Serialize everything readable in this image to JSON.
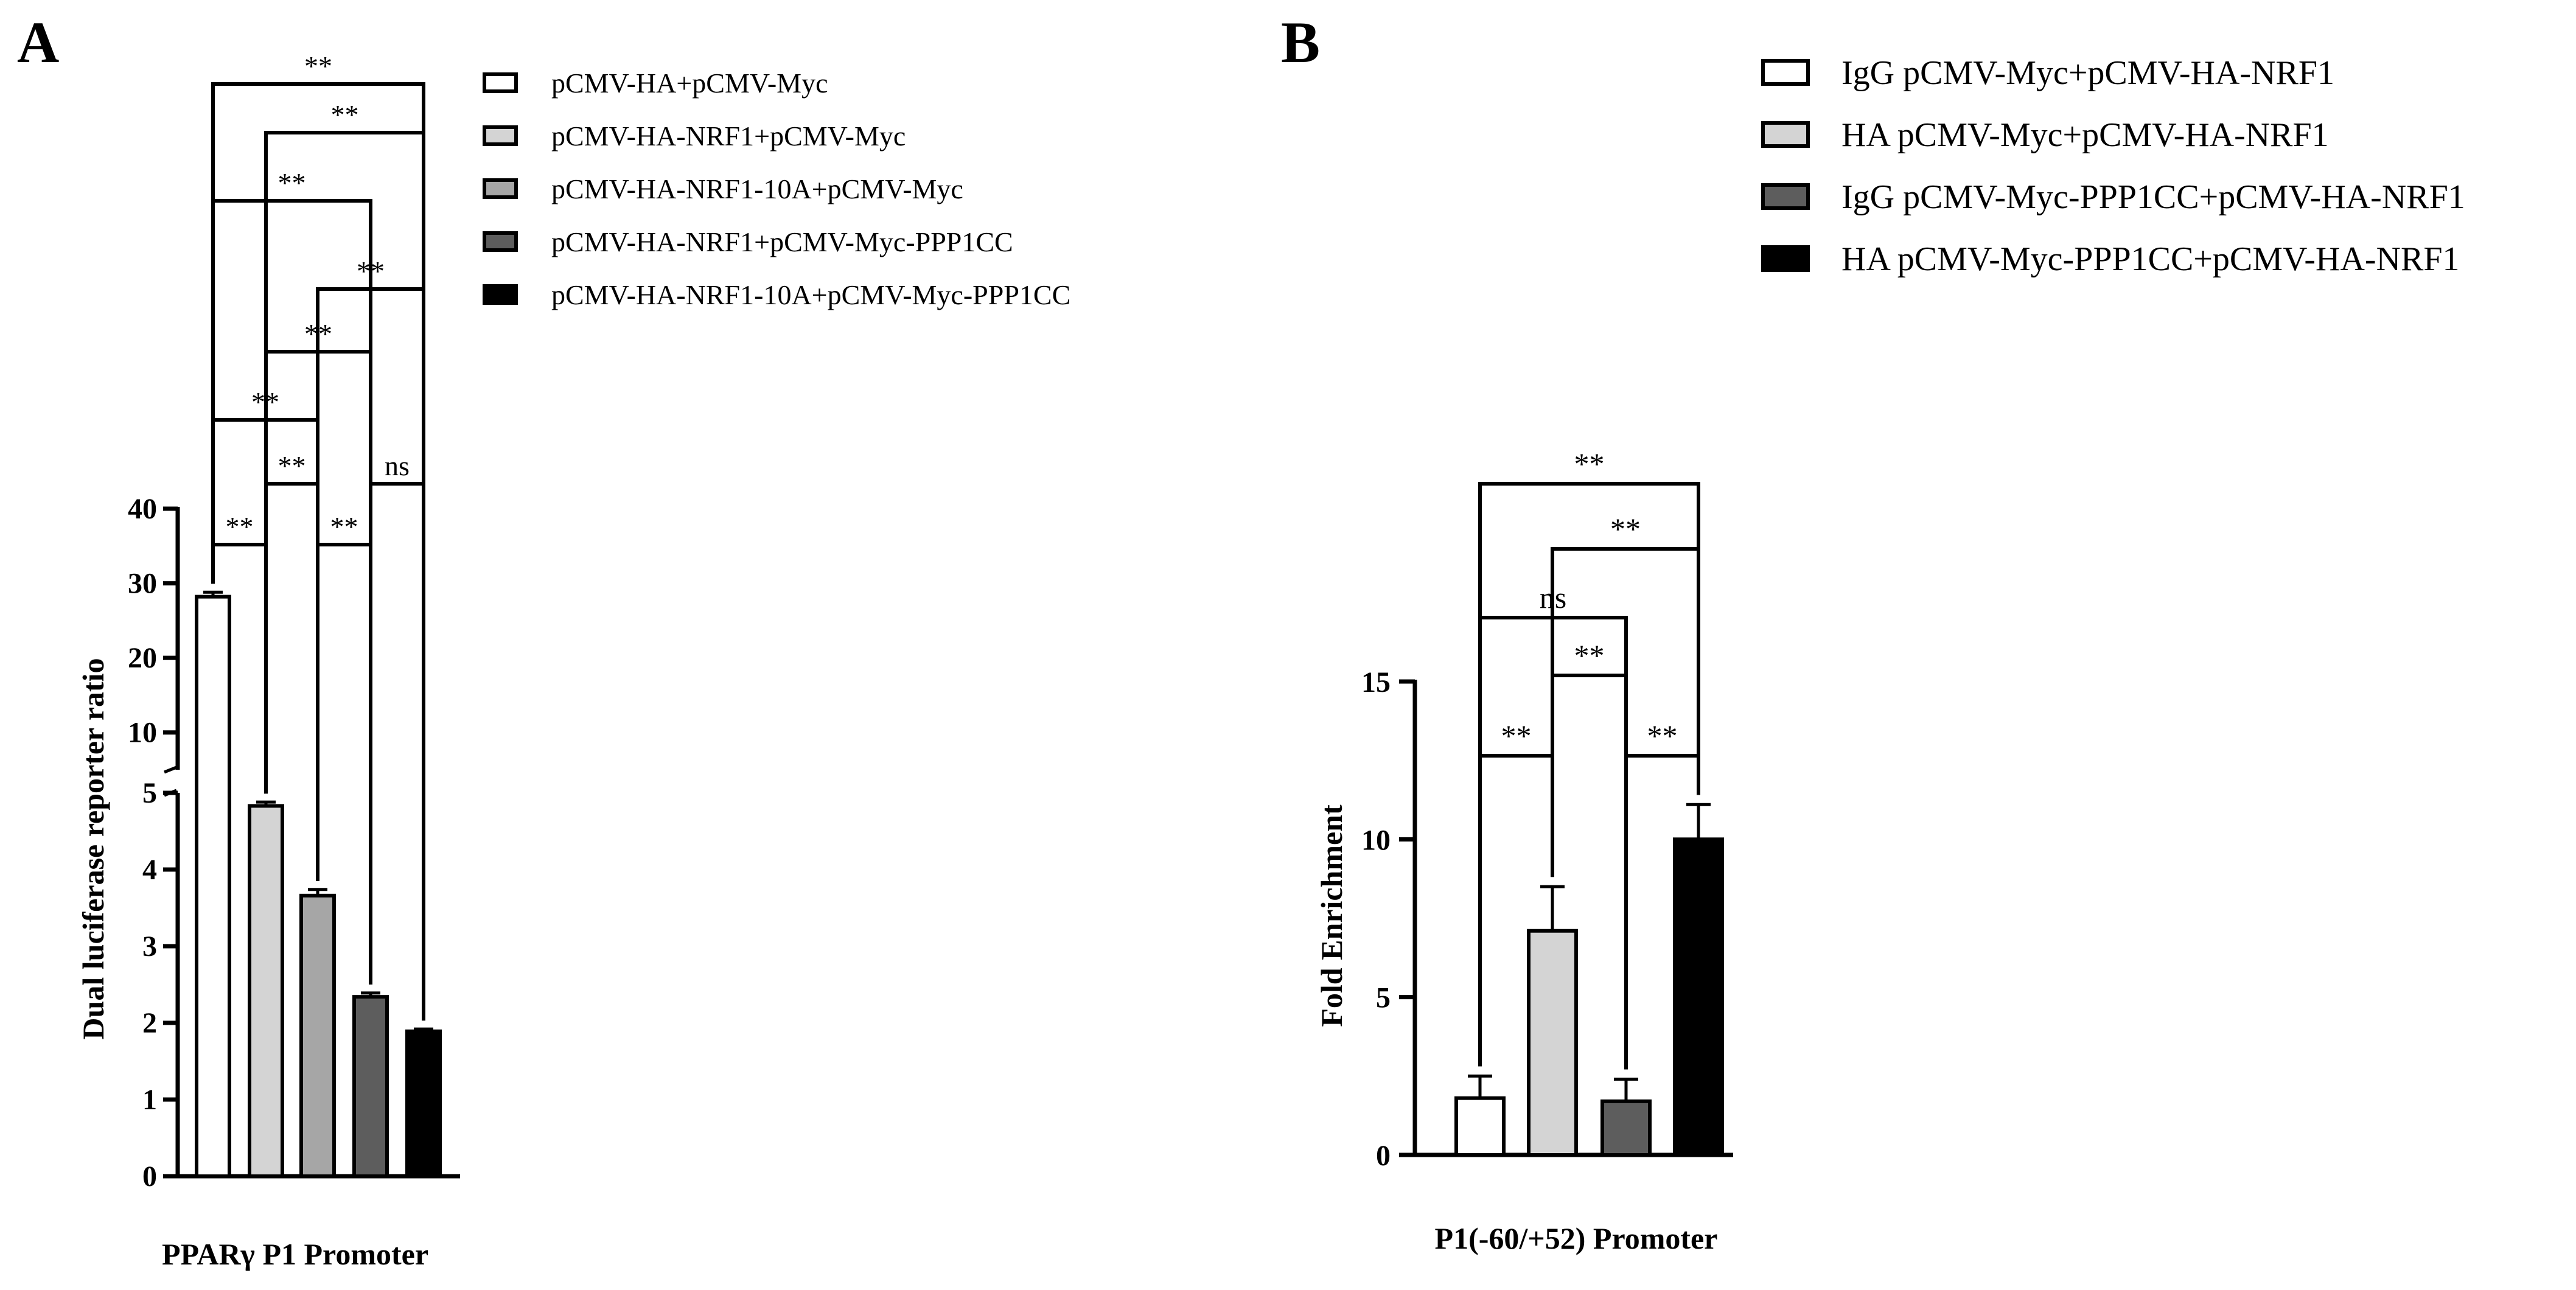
{
  "chart_data": [
    {
      "panel_label": "A",
      "type": "bar",
      "xlabel": "PPARγ P1 Promoter",
      "ylabel": "Dual luciferase reporter ratio",
      "y_axis_break": {
        "lower": [
          0,
          5
        ],
        "upper": [
          5,
          40
        ]
      },
      "yticks_lower": [
        "0",
        "1",
        "2",
        "3",
        "4",
        "5"
      ],
      "yticks_upper": [
        "10",
        "20",
        "30",
        "40"
      ],
      "categories": [
        "pCMV-HA+pCMV-Myc",
        "pCMV-HA-NRF1+pCMV-Myc",
        "pCMV-HA-NRF1-10A+pCMV-Myc",
        "pCMV-HA-NRF1+pCMV-Myc-PPP1CC",
        "pCMV-HA-NRF1-10A+pCMV-Myc-PPP1CC"
      ],
      "values": [
        28.2,
        4.83,
        3.66,
        2.34,
        1.89
      ],
      "errors": [
        0.6,
        0.05,
        0.08,
        0.05,
        0.03
      ],
      "colors": [
        "#ffffff",
        "#d4d4d4",
        "#a6a6a6",
        "#5d5d5d",
        "#000000"
      ],
      "legend": [
        "pCMV-HA+pCMV-Myc",
        "pCMV-HA-NRF1+pCMV-Myc",
        "pCMV-HA-NRF1-10A+pCMV-Myc",
        "pCMV-HA-NRF1+pCMV-Myc-PPP1CC",
        "pCMV-HA-NRF1-10A+pCMV-Myc-PPP1CC"
      ],
      "legend_position": "top-right",
      "significance": [
        {
          "from": 0,
          "to": 1,
          "label": "**"
        },
        {
          "from": 1,
          "to": 2,
          "label": "**"
        },
        {
          "from": 2,
          "to": 3,
          "label": "**"
        },
        {
          "from": 3,
          "to": 4,
          "label": "ns"
        },
        {
          "from": 0,
          "to": 2,
          "label": "**"
        },
        {
          "from": 1,
          "to": 3,
          "label": "**"
        },
        {
          "from": 2,
          "to": 4,
          "label": "**"
        },
        {
          "from": 0,
          "to": 3,
          "label": "**"
        },
        {
          "from": 1,
          "to": 4,
          "label": "**"
        },
        {
          "from": 0,
          "to": 4,
          "label": "**"
        }
      ]
    },
    {
      "panel_label": "B",
      "type": "bar",
      "xlabel": "P1(-60/+52) Promoter",
      "ylabel": "Fold Enrichment",
      "ylim": [
        0,
        15
      ],
      "yticks": [
        "0",
        "5",
        "10",
        "15"
      ],
      "categories": [
        "IgG pCMV-Myc+pCMV-HA-NRF1",
        "HA pCMV-Myc+pCMV-HA-NRF1",
        "IgG pCMV-Myc-PPP1CC+pCMV-HA-NRF1",
        "HA pCMV-Myc-PPP1CC+pCMV-HA-NRF1"
      ],
      "values": [
        1.8,
        7.1,
        1.7,
        10.0
      ],
      "errors": [
        0.7,
        1.4,
        0.7,
        1.1
      ],
      "colors": [
        "#ffffff",
        "#d4d4d4",
        "#5d5d5d",
        "#000000"
      ],
      "legend": [
        "IgG pCMV-Myc+pCMV-HA-NRF1",
        "HA pCMV-Myc+pCMV-HA-NRF1",
        "IgG pCMV-Myc-PPP1CC+pCMV-HA-NRF1",
        "HA pCMV-Myc-PPP1CC+pCMV-HA-NRF1"
      ],
      "legend_position": "top-right",
      "significance": [
        {
          "from": 0,
          "to": 1,
          "label": "**"
        },
        {
          "from": 2,
          "to": 3,
          "label": "**"
        },
        {
          "from": 1,
          "to": 2,
          "label": "**"
        },
        {
          "from": 0,
          "to": 2,
          "label": "ns"
        },
        {
          "from": 1,
          "to": 3,
          "label": "**"
        },
        {
          "from": 0,
          "to": 3,
          "label": "**"
        }
      ]
    }
  ]
}
